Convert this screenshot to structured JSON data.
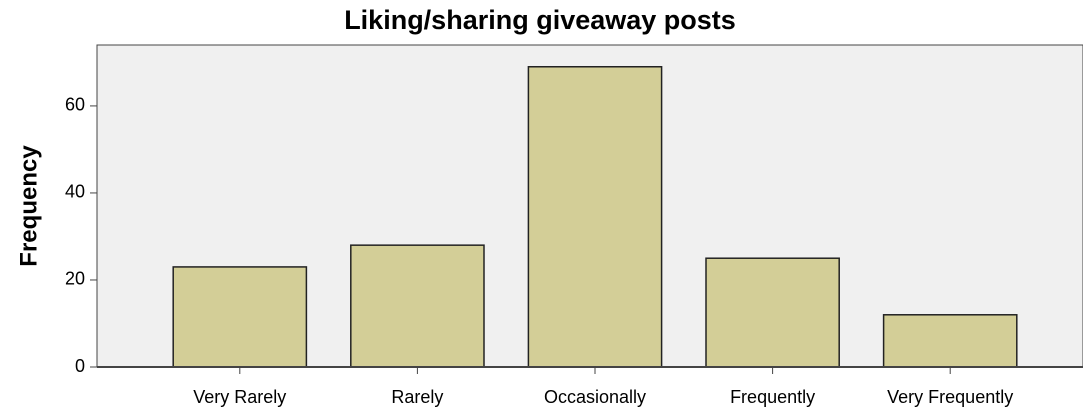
{
  "chart_data": {
    "type": "bar",
    "title": "Liking/sharing giveaway posts",
    "y_label": "Frequency",
    "categories": [
      "Very Rarely",
      "Rarely",
      "Occasionally",
      "Frequently",
      "Very Frequently"
    ],
    "values": [
      23,
      28,
      69,
      25,
      12
    ],
    "color": "#d3ce97",
    "ylim": [
      0,
      74
    ],
    "yticks": [
      0,
      20,
      40,
      60
    ],
    "grid": false
  }
}
